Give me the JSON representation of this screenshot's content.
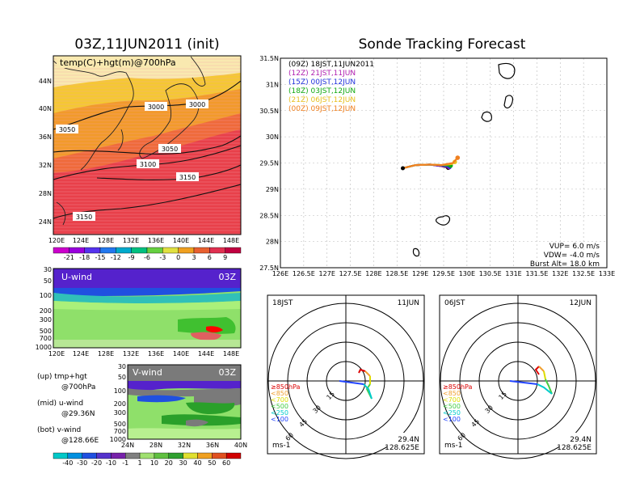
{
  "left": {
    "title": "03Z,11JUN2011 (init)",
    "top_map": {
      "label": "temp(C)+hgt(m)@700hPa",
      "lat_ticks": [
        "44N",
        "40N",
        "36N",
        "32N",
        "28N",
        "24N"
      ],
      "lon_ticks": [
        "120E",
        "124E",
        "128E",
        "132E",
        "136E",
        "140E",
        "144E",
        "148E"
      ],
      "contour_labels": [
        "3000",
        "3000",
        "3050",
        "3050",
        "3100",
        "3150",
        "3150"
      ]
    },
    "temp_colorbar": [
      "-21",
      "-18",
      "-15",
      "-12",
      "-9",
      "-6",
      "-3",
      "0",
      "3",
      "6",
      "9"
    ],
    "u_panel": {
      "label": "U-wind",
      "time": "03Z",
      "p_ticks": [
        "30",
        "50",
        "100",
        "200",
        "300",
        "500",
        "700",
        "1000"
      ],
      "lon_ticks": [
        "120E",
        "124E",
        "128E",
        "132E",
        "136E",
        "140E",
        "144E",
        "148E"
      ]
    },
    "v_panel": {
      "label": "V-wind",
      "time": "03Z",
      "p_ticks": [
        "30",
        "50",
        "100",
        "200",
        "300",
        "500",
        "700",
        "1000"
      ],
      "lat_ticks": [
        "24N",
        "28N",
        "32N",
        "36N",
        "40N"
      ]
    },
    "legend_notes": {
      "up": "(up) tmp+hgt",
      "up_sub": "@700hPa",
      "mid": "(mid) u-wind",
      "mid_sub": "@29.36N",
      "bot": "(bot) v-wind",
      "bot_sub": "@128.66E"
    },
    "wind_colorbar": [
      "-40",
      "-30",
      "-20",
      "-10",
      "-1",
      "1",
      "10",
      "20",
      "30",
      "40",
      "50",
      "60"
    ]
  },
  "right": {
    "title": "Sonde Tracking Forecast",
    "launches": [
      {
        "label": "(09Z)  18JST,11JUN2011",
        "color": "#000000"
      },
      {
        "label": "(12Z)  21JST,11JUN",
        "color": "#b01fb0"
      },
      {
        "label": "(15Z)  00JST,12JUN",
        "color": "#2233dd"
      },
      {
        "label": "(18Z)  03JST,12JUN",
        "color": "#11aa11"
      },
      {
        "label": "(21Z)  06JST,12JUN",
        "color": "#e8c020"
      },
      {
        "label": "(00Z)  09JST,12JUN",
        "color": "#f08020"
      }
    ],
    "params": {
      "vup": "VUP=  6.0  m/s",
      "vdw": "VDW=  -4.0  m/s",
      "burst": "Burst Alt=  18.0  km"
    },
    "lat_ticks": [
      "31.5N",
      "31N",
      "30.5N",
      "30N",
      "29.5N",
      "29N",
      "28.5N",
      "28N",
      "27.5N"
    ],
    "lon_ticks": [
      "126E",
      "126.5E",
      "127E",
      "127.5E",
      "128E",
      "128.5E",
      "129E",
      "129.5E",
      "130E",
      "130.5E",
      "131E",
      "131.5E",
      "132E",
      "132.5E",
      "133E"
    ],
    "hodo_left": {
      "time": "18JST",
      "date": "11JUN",
      "lat": "29.4N",
      "lon": "128.625E",
      "unit": "ms-1"
    },
    "hodo_right": {
      "time": "06JST",
      "date": "12JUN",
      "lat": "29.4N",
      "lon": "128.625E",
      "unit": "ms-1"
    },
    "ring_labels": [
      "15",
      "30",
      "45",
      "60"
    ],
    "level_legend": [
      {
        "label": "≥850hPa",
        "color": "#dd0000"
      },
      {
        "label": "<850",
        "color": "#f0a030"
      },
      {
        "label": "<700",
        "color": "#dddd00"
      },
      {
        "label": "<500",
        "color": "#44cc44"
      },
      {
        "label": "<250",
        "color": "#00cccc"
      },
      {
        "label": "<100",
        "color": "#2244ff"
      }
    ]
  },
  "chart_data": [
    {
      "type": "heatmap",
      "title": "03Z,11JUN2011 (init)",
      "variable": "temp(C)+hgt(m)@700hPa",
      "xlim": [
        120,
        150
      ],
      "ylim": [
        22,
        48
      ],
      "contours_hgt_m": [
        3000,
        3050,
        3100,
        3150
      ],
      "colorbar_levels_C": [
        -21,
        -18,
        -15,
        -12,
        -9,
        -6,
        -3,
        0,
        3,
        6,
        9
      ]
    },
    {
      "type": "heatmap",
      "title": "U-wind",
      "time": "03Z",
      "xlim": [
        120,
        150
      ],
      "ylim_hPa": [
        1000,
        30
      ]
    },
    {
      "type": "heatmap",
      "title": "V-wind",
      "time": "03Z",
      "xlim": [
        24,
        40
      ],
      "ylim_hPa": [
        1000,
        30
      ],
      "colorbar_levels": [
        -40,
        -30,
        -20,
        -10,
        -1,
        1,
        10,
        20,
        30,
        40,
        50,
        60
      ]
    },
    {
      "type": "line",
      "title": "Sonde Tracking Forecast",
      "xlim": [
        126,
        133
      ],
      "ylim": [
        27.5,
        31.5
      ],
      "series": [
        {
          "name": "(09Z)",
          "x": [
            128.625,
            128.9,
            129.2,
            129.45,
            129.6
          ],
          "y": [
            29.4,
            29.46,
            29.47,
            29.44,
            29.41
          ]
        },
        {
          "name": "(12Z)",
          "x": [
            128.625,
            128.9,
            129.2,
            129.45,
            129.62
          ],
          "y": [
            29.4,
            29.46,
            29.47,
            29.44,
            29.42
          ]
        },
        {
          "name": "(15Z)",
          "x": [
            128.625,
            128.9,
            129.2,
            129.45,
            129.63
          ],
          "y": [
            29.4,
            29.46,
            29.47,
            29.45,
            29.43
          ]
        },
        {
          "name": "(18Z)",
          "x": [
            128.625,
            128.9,
            129.2,
            129.45,
            129.65
          ],
          "y": [
            29.4,
            29.46,
            29.47,
            29.46,
            29.45
          ]
        },
        {
          "name": "(21Z)",
          "x": [
            128.625,
            128.9,
            129.2,
            129.45,
            129.68,
            129.74
          ],
          "y": [
            29.4,
            29.46,
            29.47,
            29.46,
            29.48,
            29.52
          ]
        },
        {
          "name": "(00Z)",
          "x": [
            128.625,
            128.9,
            129.2,
            129.45,
            129.7,
            129.8
          ],
          "y": [
            29.4,
            29.46,
            29.47,
            29.46,
            29.5,
            29.6
          ]
        }
      ]
    }
  ]
}
